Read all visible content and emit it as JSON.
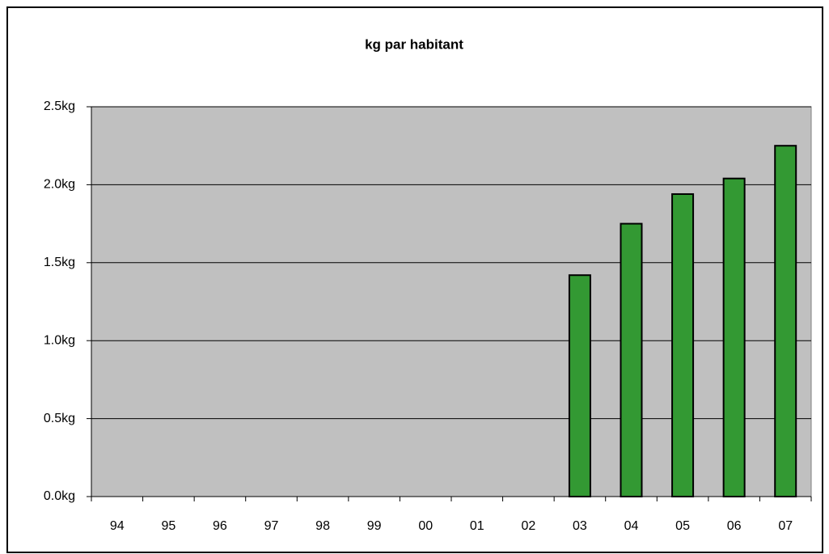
{
  "chart_data": {
    "type": "bar",
    "title": "kg par habitant",
    "categories": [
      "94",
      "95",
      "96",
      "97",
      "98",
      "99",
      "00",
      "01",
      "02",
      "03",
      "04",
      "05",
      "06",
      "07"
    ],
    "values": [
      null,
      null,
      null,
      null,
      null,
      null,
      null,
      null,
      null,
      1.42,
      1.75,
      1.94,
      2.04,
      2.25
    ],
    "color": "#339933",
    "ylim": [
      0,
      2.5
    ],
    "yticks": [
      {
        "value": 0,
        "label": "0.0kg"
      },
      {
        "value": 0.5,
        "label": "0.5kg"
      },
      {
        "value": 1,
        "label": "1.0kg"
      },
      {
        "value": 1.5,
        "label": "1.5kg"
      },
      {
        "value": 2,
        "label": "2.0kg"
      },
      {
        "value": 2.5,
        "label": "2.5kg"
      }
    ],
    "grid": true
  }
}
